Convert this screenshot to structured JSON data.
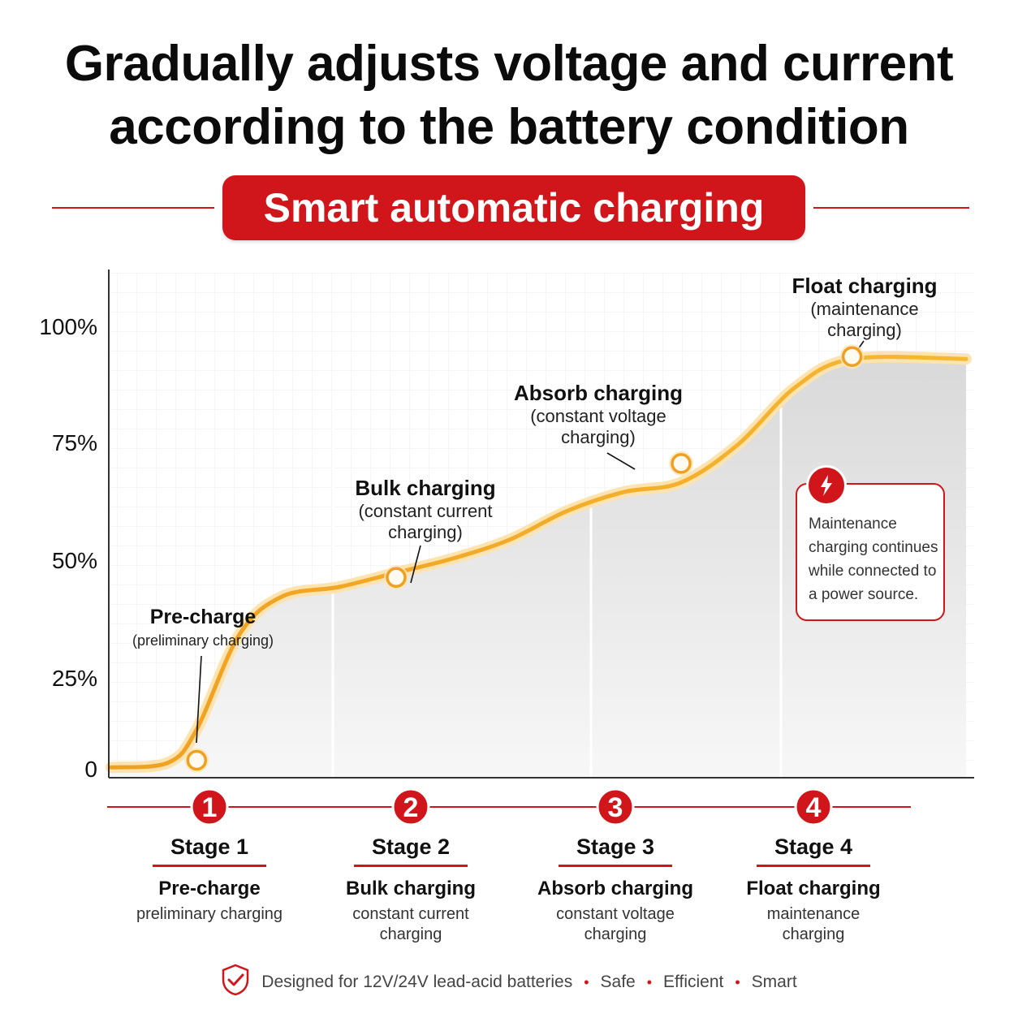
{
  "headline": {
    "line1": "Gradually adjusts voltage and current",
    "line2": "according to the battery condition"
  },
  "banner": {
    "label": "Smart automatic charging"
  },
  "chart_data": {
    "type": "line",
    "yticks": [
      "100%",
      "75%",
      "50%",
      "25%",
      "0"
    ],
    "ylim": [
      0,
      100
    ],
    "grid": true,
    "series": [
      {
        "values_note_free": true,
        "points": [
          [
            0,
            2
          ],
          [
            20,
            3
          ],
          [
            30,
            10
          ],
          [
            45,
            30
          ],
          [
            60,
            38
          ],
          [
            80,
            40
          ],
          [
            100,
            43
          ],
          [
            120,
            46
          ],
          [
            140,
            50
          ],
          [
            160,
            56
          ],
          [
            180,
            60
          ],
          [
            200,
            62
          ],
          [
            220,
            70
          ],
          [
            240,
            82
          ],
          [
            260,
            88
          ],
          [
            300,
            88
          ]
        ]
      }
    ],
    "annotations": [
      {
        "title": "Pre-charge",
        "subtitle": "(preliminary charging)"
      },
      {
        "title": "Bulk charging",
        "subtitle": "(constant current\ncharging)"
      },
      {
        "title": "Absorb charging",
        "subtitle": "(constant voltage\ncharging)"
      },
      {
        "title": "Float charging",
        "subtitle": "(maintenance\ncharging)"
      }
    ],
    "accent_color": "#d0161b",
    "curve_color": "#f5a623"
  },
  "note": {
    "icon": "lightning-icon",
    "text": "Maintenance charging continues while connected to a power source."
  },
  "stages": [
    {
      "number": "1",
      "title": "Stage 1",
      "name": "Pre-charge",
      "desc": "preliminary charging"
    },
    {
      "number": "2",
      "title": "Stage 2",
      "name": "Bulk charging",
      "desc": "constant current\ncharging"
    },
    {
      "number": "3",
      "title": "Stage 3",
      "name": "Absorb charging",
      "desc": "constant voltage\ncharging"
    },
    {
      "number": "4",
      "title": "Stage 4",
      "name": "Float charging",
      "desc": "maintenance\ncharging"
    }
  ],
  "footer": {
    "icon": "shield-check-icon",
    "text": "Designed for 12V/24V lead-acid batteries",
    "items": [
      "Safe",
      "Efficient",
      "Smart"
    ]
  }
}
